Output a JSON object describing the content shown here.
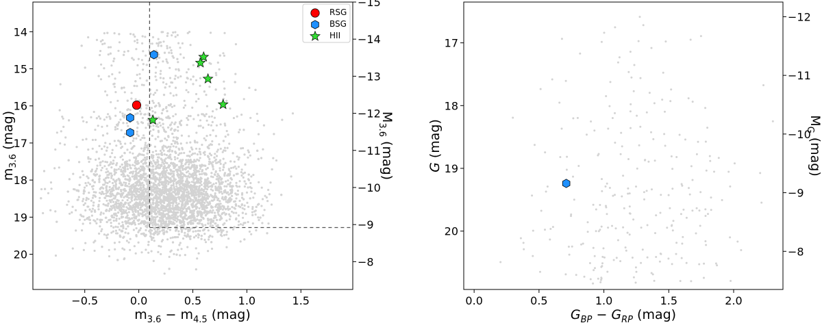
{
  "chart_data": [
    {
      "type": "scatter",
      "xlabel": "m3.6 − m4.5 (mag)",
      "xlabel_parts": {
        "m1": "m",
        "s1": "3.6",
        "minus": " − ",
        "m2": "m",
        "s2": "4.5",
        "unit": " (mag)"
      },
      "ylabel": "m3.6 (mag)",
      "ylabel_parts": {
        "m": "m",
        "sub": "3.6",
        "unit": " (mag)"
      },
      "y2label": "M3.6 (mag)",
      "y2label_parts": {
        "m": "M",
        "sub": "3.6",
        "unit": " (mag)"
      },
      "xlim": [
        -0.98,
        1.98
      ],
      "ylim": [
        20.95,
        13.2
      ],
      "y2lim": [
        -7.25,
        -15.0
      ],
      "xticks": [
        -0.5,
        0.0,
        0.5,
        1.0,
        1.5
      ],
      "xtick_labels": [
        "−0.5",
        "0.0",
        "0.5",
        "1.0",
        "1.5"
      ],
      "yticks": [
        14,
        15,
        16,
        17,
        18,
        19,
        20
      ],
      "ytick_labels": [
        "14",
        "15",
        "16",
        "17",
        "18",
        "19",
        "20"
      ],
      "y2ticks": [
        -15,
        -14,
        -13,
        -12,
        -11,
        -10,
        -9,
        -8
      ],
      "y2tick_labels": [
        "−15",
        "−14",
        "−13",
        "−12",
        "−11",
        "−10",
        "−9",
        "−8"
      ],
      "dashed_cuts": {
        "x": 0.1,
        "y": 19.28
      },
      "background_color": "#d3d3d3",
      "series": [
        {
          "name": "RSG",
          "marker": "circle",
          "color": "#ff0000",
          "points": [
            {
              "x": -0.02,
              "y": 15.98
            }
          ]
        },
        {
          "name": "BSG",
          "marker": "hexagon",
          "color": "#1e90ff",
          "points": [
            {
              "x": 0.14,
              "y": 14.62
            },
            {
              "x": -0.08,
              "y": 16.32
            },
            {
              "x": -0.08,
              "y": 16.72
            }
          ]
        },
        {
          "name": "HII",
          "marker": "star",
          "color": "#33dd33",
          "points": [
            {
              "x": 0.6,
              "y": 14.68
            },
            {
              "x": 0.57,
              "y": 14.84
            },
            {
              "x": 0.64,
              "y": 15.27
            },
            {
              "x": 0.78,
              "y": 15.96
            },
            {
              "x": 0.13,
              "y": 16.38
            }
          ]
        }
      ],
      "legend": {
        "position": "top-right",
        "entries": [
          "RSG",
          "BSG",
          "HII"
        ]
      }
    },
    {
      "type": "scatter",
      "xlabel": "GBP − GRP (mag)",
      "xlabel_parts": {
        "g1": "G",
        "s1": "BP",
        "minus": " − ",
        "g2": "G",
        "s2": "RP",
        "unit": " (mag)"
      },
      "ylabel": "G (mag)",
      "ylabel_parts": {
        "g": "G",
        "unit": " (mag)"
      },
      "y2label": "MG (mag)",
      "y2label_parts": {
        "m": "M",
        "sub": "G",
        "unit": " (mag)"
      },
      "xlim": [
        -0.08,
        2.38
      ],
      "ylim": [
        20.93,
        16.35
      ],
      "y2lim": [
        -7.35,
        -12.25
      ],
      "xticks": [
        0.0,
        0.5,
        1.0,
        1.5,
        2.0
      ],
      "xtick_labels": [
        "0.0",
        "0.5",
        "1.0",
        "1.5",
        "2.0"
      ],
      "yticks": [
        17,
        18,
        19,
        20
      ],
      "ytick_labels": [
        "17",
        "18",
        "19",
        "20"
      ],
      "y2ticks": [
        -12,
        -11,
        -10,
        -9,
        -8
      ],
      "y2tick_labels": [
        "−12",
        "−11",
        "−10",
        "−9",
        "−8"
      ],
      "background_color": "#d3d3d3",
      "series": [
        {
          "name": "BSG",
          "marker": "hexagon",
          "color": "#1e90ff",
          "points": [
            {
              "x": 0.71,
              "y": 19.24
            }
          ]
        }
      ]
    }
  ]
}
